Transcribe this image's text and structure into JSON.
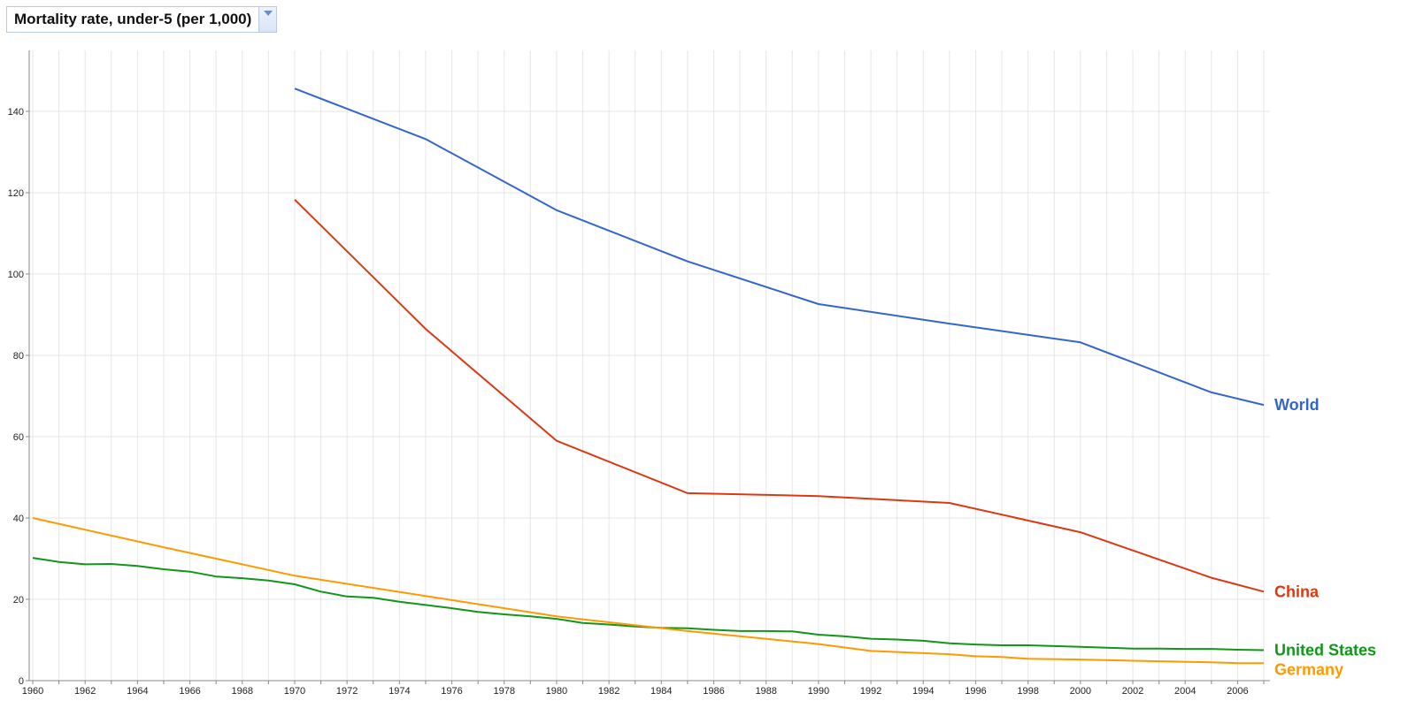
{
  "selector": {
    "metric_label": "Mortality rate, under-5 (per 1,000)",
    "dropdown_icon": "chevron-down-icon"
  },
  "chart_data": {
    "type": "line",
    "title": "",
    "xlabel": "",
    "ylabel": "",
    "xlim": [
      1960,
      2007
    ],
    "ylim": [
      0,
      155
    ],
    "x_ticks": [
      "1960",
      "1962",
      "1964",
      "1966",
      "1968",
      "1970",
      "1972",
      "1974",
      "1976",
      "1978",
      "1980",
      "1982",
      "1984",
      "1986",
      "1988",
      "1990",
      "1992",
      "1994",
      "1996",
      "1998",
      "2000",
      "2002",
      "2004",
      "2006"
    ],
    "y_ticks": [
      "0",
      "20",
      "40",
      "60",
      "80",
      "100",
      "120",
      "140"
    ],
    "grid": true,
    "legend": "labels at right end of lines",
    "series": [
      {
        "name": "World",
        "color": "#3366cc",
        "points": [
          [
            1970,
            145.6
          ],
          [
            1975,
            133.2
          ],
          [
            1980,
            115.7
          ],
          [
            1985,
            103.1
          ],
          [
            1990,
            92.6
          ],
          [
            1995,
            87.8
          ],
          [
            2000,
            83.2
          ],
          [
            2005,
            70.9
          ],
          [
            2007,
            67.8
          ]
        ]
      },
      {
        "name": "China",
        "color": "#dc3912",
        "points": [
          [
            1970,
            118.3
          ],
          [
            1975,
            86.5
          ],
          [
            1980,
            59.0
          ],
          [
            1985,
            46.1
          ],
          [
            1990,
            45.4
          ],
          [
            1995,
            43.7
          ],
          [
            2000,
            36.5
          ],
          [
            2005,
            25.3
          ],
          [
            2007,
            21.9
          ]
        ]
      },
      {
        "name": "United States",
        "color": "#109618",
        "points": [
          [
            1960,
            30.2
          ],
          [
            1961,
            29.2
          ],
          [
            1962,
            28.6
          ],
          [
            1963,
            28.7
          ],
          [
            1964,
            28.2
          ],
          [
            1965,
            27.4
          ],
          [
            1966,
            26.8
          ],
          [
            1967,
            25.6
          ],
          [
            1968,
            25.2
          ],
          [
            1969,
            24.6
          ],
          [
            1970,
            23.7
          ],
          [
            1971,
            21.9
          ],
          [
            1972,
            20.7
          ],
          [
            1973,
            20.4
          ],
          [
            1974,
            19.4
          ],
          [
            1975,
            18.6
          ],
          [
            1976,
            17.8
          ],
          [
            1977,
            16.9
          ],
          [
            1978,
            16.3
          ],
          [
            1979,
            15.8
          ],
          [
            1980,
            15.2
          ],
          [
            1981,
            14.2
          ],
          [
            1982,
            13.8
          ],
          [
            1983,
            13.3
          ],
          [
            1984,
            13.0
          ],
          [
            1985,
            12.9
          ],
          [
            1986,
            12.5
          ],
          [
            1987,
            12.2
          ],
          [
            1988,
            12.2
          ],
          [
            1989,
            12.1
          ],
          [
            1990,
            11.3
          ],
          [
            1991,
            10.9
          ],
          [
            1992,
            10.3
          ],
          [
            1993,
            10.1
          ],
          [
            1994,
            9.8
          ],
          [
            1995,
            9.2
          ],
          [
            1996,
            8.9
          ],
          [
            1997,
            8.7
          ],
          [
            1998,
            8.7
          ],
          [
            1999,
            8.5
          ],
          [
            2000,
            8.3
          ],
          [
            2001,
            8.1
          ],
          [
            2002,
            7.9
          ],
          [
            2003,
            7.9
          ],
          [
            2004,
            7.8
          ],
          [
            2005,
            7.8
          ],
          [
            2006,
            7.6
          ],
          [
            2007,
            7.5
          ]
        ]
      },
      {
        "name": "Germany",
        "color": "#ff9900",
        "points": [
          [
            1960,
            40.0
          ],
          [
            1965,
            32.8
          ],
          [
            1970,
            25.8
          ],
          [
            1975,
            20.8
          ],
          [
            1980,
            15.8
          ],
          [
            1985,
            12.2
          ],
          [
            1990,
            9.0
          ],
          [
            1992,
            7.3
          ],
          [
            1995,
            6.5
          ],
          [
            1996,
            6.0
          ],
          [
            1997,
            5.8
          ],
          [
            1998,
            5.4
          ],
          [
            2000,
            5.2
          ],
          [
            2002,
            4.9
          ],
          [
            2005,
            4.5
          ],
          [
            2006,
            4.3
          ],
          [
            2007,
            4.3
          ]
        ]
      }
    ]
  }
}
